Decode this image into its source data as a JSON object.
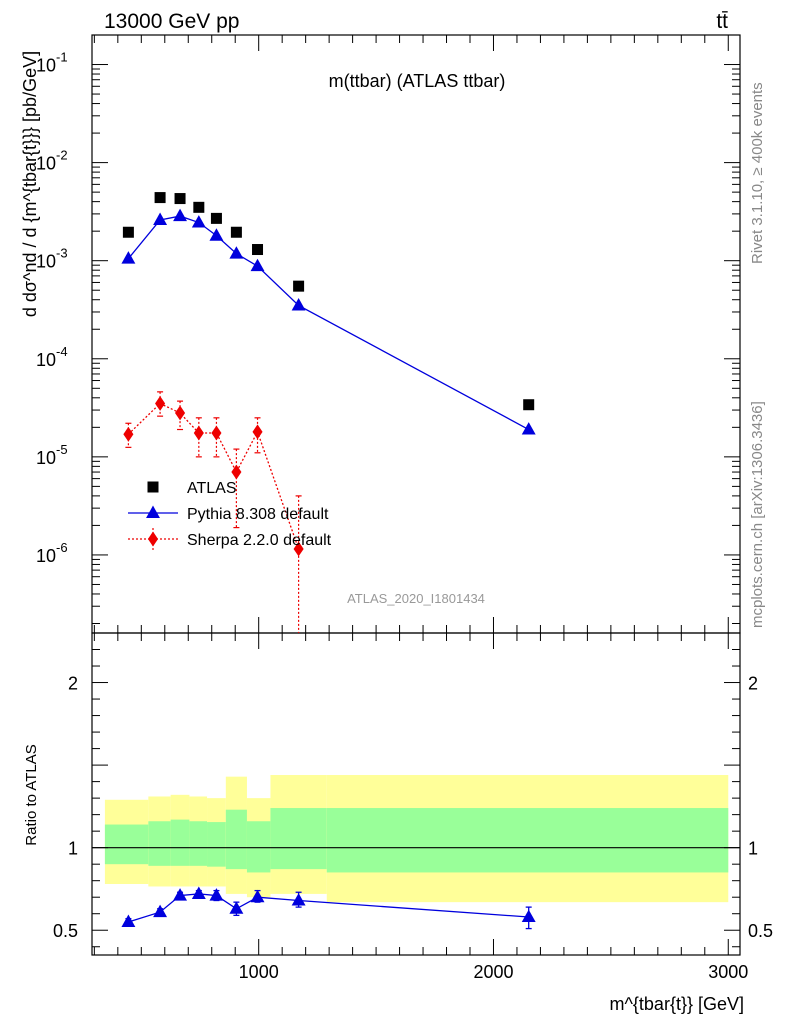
{
  "header": {
    "energy_label": "13000 GeV pp",
    "process_label": "tt̄"
  },
  "side_labels": {
    "rivet": "Rivet 3.1.10, ≥ 400k events",
    "mcplots": "mcplots.cern.ch [arXiv:1306.3436]"
  },
  "chart_data": [
    {
      "type": "scatter",
      "panel": "main",
      "title": "m(ttbar) (ATLAS ttbar)",
      "analysis_id": "ATLAS_2020_I1801434",
      "ylabel": "d dσ^nd / d {m^{tbar{t}}} [pb/GeV]",
      "xlabel": "m^{tbar{t}} [GeV]",
      "xlim": [
        290,
        3050
      ],
      "ylim": [
        1.6e-07,
        0.2
      ],
      "yscale": "log",
      "x_tick_labels": [
        "1000",
        "2000",
        "3000"
      ],
      "y_tick_labels": [
        "10^{-6}",
        "10^{-5}",
        "10^{-4}",
        "10^{-3}",
        "10^{-2}",
        "10^{-1}"
      ],
      "legend_position": "bottom-left",
      "series": [
        {
          "name": "ATLAS",
          "color": "#000000",
          "marker": "square",
          "x": [
            445,
            580,
            665,
            745,
            820,
            905,
            995,
            1170,
            2150
          ],
          "y": [
            0.00195,
            0.0044,
            0.0043,
            0.0035,
            0.0027,
            0.00195,
            0.0013,
            0.00055,
            3.4e-05
          ]
        },
        {
          "name": "Pythia 8.308 default",
          "color": "#0000dd",
          "marker": "triangle",
          "line": "solid",
          "x": [
            445,
            580,
            665,
            745,
            820,
            905,
            995,
            1170,
            2150
          ],
          "y": [
            0.00105,
            0.0026,
            0.00285,
            0.00245,
            0.0018,
            0.00118,
            0.00088,
            0.00035,
            1.9e-05
          ]
        },
        {
          "name": "Sherpa 2.2.0 default",
          "color": "#ee0000",
          "marker": "diamond",
          "line": "dotted",
          "x": [
            445,
            580,
            665,
            745,
            820,
            905,
            995,
            1170
          ],
          "y": [
            1.7e-05,
            3.5e-05,
            2.8e-05,
            1.75e-05,
            1.75e-05,
            7e-06,
            1.8e-05,
            1.15e-06
          ],
          "y_low": [
            1.25e-05,
            2.6e-05,
            1.9e-05,
            1e-05,
            1e-05,
            1.9e-06,
            1.1e-05,
            1e-08
          ],
          "y_high": [
            2.2e-05,
            4.6e-05,
            3.7e-05,
            2.5e-05,
            2.5e-05,
            1.2e-05,
            2.5e-05,
            4e-06
          ]
        }
      ]
    },
    {
      "type": "line",
      "panel": "ratio",
      "ylabel": "Ratio to ATLAS",
      "xlim": [
        290,
        3050
      ],
      "ylim": [
        0.35,
        2.3
      ],
      "y_tick_labels": [
        "0.5",
        "1",
        "2"
      ],
      "bands": {
        "edges": [
          345,
          530,
          625,
          705,
          780,
          860,
          950,
          1050,
          1290,
          3000
        ],
        "outer_low": [
          0.78,
          0.765,
          0.765,
          0.765,
          0.765,
          0.72,
          0.7,
          0.72,
          0.67
        ],
        "outer_high": [
          1.29,
          1.31,
          1.32,
          1.31,
          1.3,
          1.43,
          1.3,
          1.44,
          1.44
        ],
        "inner_low": [
          0.9,
          0.89,
          0.89,
          0.89,
          0.885,
          0.87,
          0.85,
          0.87,
          0.85
        ],
        "inner_high": [
          1.14,
          1.16,
          1.17,
          1.16,
          1.155,
          1.23,
          1.16,
          1.24,
          1.24
        ],
        "outer_color": "#ffff99",
        "inner_color": "#99ff99"
      },
      "series": [
        {
          "name": "Pythia 8.308 default",
          "color": "#0000dd",
          "marker": "triangle",
          "x": [
            445,
            580,
            665,
            745,
            820,
            905,
            995,
            1170,
            2150
          ],
          "y": [
            0.55,
            0.61,
            0.71,
            0.72,
            0.71,
            0.63,
            0.7,
            0.68,
            0.58
          ],
          "y_low": [
            0.53,
            0.59,
            0.69,
            0.7,
            0.68,
            0.59,
            0.67,
            0.64,
            0.51
          ],
          "y_high": [
            0.57,
            0.63,
            0.73,
            0.74,
            0.74,
            0.67,
            0.74,
            0.73,
            0.64
          ]
        }
      ]
    }
  ]
}
